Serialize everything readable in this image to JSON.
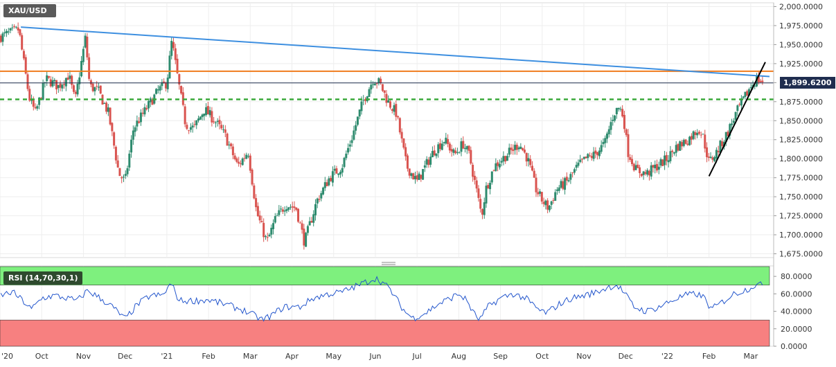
{
  "header": {
    "symbol": "XAU/USD",
    "rsi_label": "RSI (14,70,30,1)",
    "last_price": "1,899.6200"
  },
  "colors": {
    "up_candle": "#2e8b6e",
    "down_candle": "#d9534f",
    "trendline_blue": "#3d8fe0",
    "resistance_orange": "#f07c1e",
    "support_green": "#3aa83a",
    "last_price_line": "#1f2d4f",
    "rsi_line": "#2255cc",
    "rsi_overbought_zone": "#7ef07e",
    "rsi_oversold_zone": "#f78080",
    "price_tag_bg": "#1f2d4f"
  },
  "chart_data": [
    {
      "type": "candlestick",
      "title": "XAU/USD",
      "ylim": [
        1670,
        2005
      ],
      "yticks": [
        "2,000.0000",
        "1,975.0000",
        "1,950.0000",
        "1,925.0000",
        "1,900.0000",
        "1,875.0000",
        "1,850.0000",
        "1,825.0000",
        "1,800.0000",
        "1,775.0000",
        "1,750.0000",
        "1,725.0000",
        "1,700.0000",
        "1,675.0000"
      ],
      "ytick_values": [
        2000,
        1975,
        1950,
        1925,
        1900,
        1875,
        1850,
        1825,
        1800,
        1775,
        1750,
        1725,
        1700,
        1675
      ],
      "xticks": [
        "'20",
        "Oct",
        "Nov",
        "Dec",
        "'21",
        "Feb",
        "Mar",
        "Apr",
        "May",
        "Jun",
        "Jul",
        "Aug",
        "Sep",
        "Oct",
        "Nov",
        "Dec",
        "'22",
        "Feb",
        "Mar"
      ],
      "xtick_months": [
        0,
        1,
        2,
        3,
        4,
        5,
        6,
        7,
        8,
        9,
        10,
        11,
        12,
        13,
        14,
        15,
        16,
        17,
        18
      ],
      "x_start_month": 0,
      "x_end_month": 18.55,
      "last_price": 1899.62,
      "resistance_level": 1915,
      "support_level": 1878,
      "trendline_down": {
        "from": [
          0.5,
          1973
        ],
        "to": [
          18.45,
          1908
        ]
      },
      "trendline_up": {
        "from": [
          17.0,
          1777
        ],
        "to": [
          18.35,
          1927
        ]
      },
      "anchors": [
        [
          0,
          1960
        ],
        [
          0.45,
          1970
        ],
        [
          0.7,
          1880
        ],
        [
          0.85,
          1860
        ],
        [
          1.1,
          1905
        ],
        [
          1.4,
          1895
        ],
        [
          1.65,
          1910
        ],
        [
          1.8,
          1875
        ],
        [
          2.05,
          1960
        ],
        [
          2.15,
          1895
        ],
        [
          2.35,
          1890
        ],
        [
          2.6,
          1860
        ],
        [
          2.85,
          1780
        ],
        [
          3.0,
          1770
        ],
        [
          3.2,
          1840
        ],
        [
          3.5,
          1865
        ],
        [
          3.8,
          1890
        ],
        [
          4.0,
          1900
        ],
        [
          4.12,
          1955
        ],
        [
          4.25,
          1910
        ],
        [
          4.45,
          1845
        ],
        [
          4.65,
          1840
        ],
        [
          4.9,
          1865
        ],
        [
          5.15,
          1850
        ],
        [
          5.4,
          1830
        ],
        [
          5.7,
          1790
        ],
        [
          5.95,
          1810
        ],
        [
          6.15,
          1730
        ],
        [
          6.4,
          1690
        ],
        [
          6.6,
          1720
        ],
        [
          6.85,
          1740
        ],
        [
          7.1,
          1735
        ],
        [
          7.3,
          1690
        ],
        [
          7.6,
          1745
        ],
        [
          7.9,
          1775
        ],
        [
          8.2,
          1790
        ],
        [
          8.45,
          1830
        ],
        [
          8.7,
          1875
        ],
        [
          8.95,
          1905
        ],
        [
          9.1,
          1900
        ],
        [
          9.3,
          1875
        ],
        [
          9.5,
          1860
        ],
        [
          9.75,
          1790
        ],
        [
          10.0,
          1770
        ],
        [
          10.2,
          1790
        ],
        [
          10.4,
          1810
        ],
        [
          10.65,
          1825
        ],
        [
          10.9,
          1805
        ],
        [
          11.1,
          1820
        ],
        [
          11.25,
          1805
        ],
        [
          11.4,
          1765
        ],
        [
          11.55,
          1725
        ],
        [
          11.65,
          1760
        ],
        [
          11.85,
          1790
        ],
        [
          12.05,
          1800
        ],
        [
          12.25,
          1810
        ],
        [
          12.45,
          1820
        ],
        [
          12.65,
          1800
        ],
        [
          12.85,
          1760
        ],
        [
          13.0,
          1745
        ],
        [
          13.15,
          1735
        ],
        [
          13.35,
          1760
        ],
        [
          13.6,
          1770
        ],
        [
          13.85,
          1790
        ],
        [
          14.05,
          1800
        ],
        [
          14.25,
          1805
        ],
        [
          14.5,
          1820
        ],
        [
          14.72,
          1860
        ],
        [
          14.85,
          1868
        ],
        [
          14.95,
          1855
        ],
        [
          15.05,
          1810
        ],
        [
          15.25,
          1785
        ],
        [
          15.5,
          1780
        ],
        [
          15.75,
          1790
        ],
        [
          16.0,
          1800
        ],
        [
          16.2,
          1815
        ],
        [
          16.5,
          1825
        ],
        [
          16.75,
          1840
        ],
        [
          16.85,
          1830
        ],
        [
          17.0,
          1795
        ],
        [
          17.2,
          1810
        ],
        [
          17.45,
          1835
        ],
        [
          17.65,
          1860
        ],
        [
          17.85,
          1880
        ],
        [
          18.0,
          1895
        ],
        [
          18.15,
          1905
        ],
        [
          18.3,
          1900
        ]
      ]
    },
    {
      "type": "line",
      "title": "RSI (14,70,30,1)",
      "ylim": [
        0,
        92
      ],
      "yticks": [
        "80.0000",
        "60.0000",
        "40.0000",
        "20.0000",
        "0.0000"
      ],
      "ytick_values": [
        80,
        60,
        40,
        20,
        0
      ],
      "overbought": 70,
      "oversold": 30,
      "anchors": [
        [
          0,
          58
        ],
        [
          0.3,
          62
        ],
        [
          0.55,
          52
        ],
        [
          0.75,
          42
        ],
        [
          1.0,
          55
        ],
        [
          1.3,
          58
        ],
        [
          1.6,
          55
        ],
        [
          1.85,
          52
        ],
        [
          2.1,
          64
        ],
        [
          2.4,
          55
        ],
        [
          2.7,
          45
        ],
        [
          3.0,
          31
        ],
        [
          3.3,
          48
        ],
        [
          3.6,
          58
        ],
        [
          3.9,
          58
        ],
        [
          4.1,
          72
        ],
        [
          4.3,
          52
        ],
        [
          4.6,
          52
        ],
        [
          5.0,
          53
        ],
        [
          5.4,
          48
        ],
        [
          5.8,
          42
        ],
        [
          6.1,
          35
        ],
        [
          6.3,
          30
        ],
        [
          6.5,
          35
        ],
        [
          6.8,
          45
        ],
        [
          7.2,
          45
        ],
        [
          7.5,
          55
        ],
        [
          7.9,
          60
        ],
        [
          8.2,
          62
        ],
        [
          8.5,
          68
        ],
        [
          8.8,
          74
        ],
        [
          9.0,
          78
        ],
        [
          9.15,
          74
        ],
        [
          9.35,
          65
        ],
        [
          9.7,
          40
        ],
        [
          9.9,
          32
        ],
        [
          10.2,
          38
        ],
        [
          10.5,
          48
        ],
        [
          10.8,
          55
        ],
        [
          11.0,
          60
        ],
        [
          11.2,
          52
        ],
        [
          11.35,
          38
        ],
        [
          11.5,
          30
        ],
        [
          11.7,
          45
        ],
        [
          12.0,
          55
        ],
        [
          12.3,
          60
        ],
        [
          12.6,
          55
        ],
        [
          12.9,
          42
        ],
        [
          13.1,
          38
        ],
        [
          13.4,
          48
        ],
        [
          13.7,
          55
        ],
        [
          14.0,
          58
        ],
        [
          14.3,
          62
        ],
        [
          14.6,
          68
        ],
        [
          14.8,
          70
        ],
        [
          14.95,
          62
        ],
        [
          15.2,
          45
        ],
        [
          15.5,
          40
        ],
        [
          15.8,
          45
        ],
        [
          16.1,
          52
        ],
        [
          16.4,
          58
        ],
        [
          16.7,
          60
        ],
        [
          16.9,
          55
        ],
        [
          17.05,
          42
        ],
        [
          17.3,
          50
        ],
        [
          17.6,
          60
        ],
        [
          17.9,
          65
        ],
        [
          18.1,
          70
        ],
        [
          18.3,
          70
        ]
      ]
    }
  ]
}
